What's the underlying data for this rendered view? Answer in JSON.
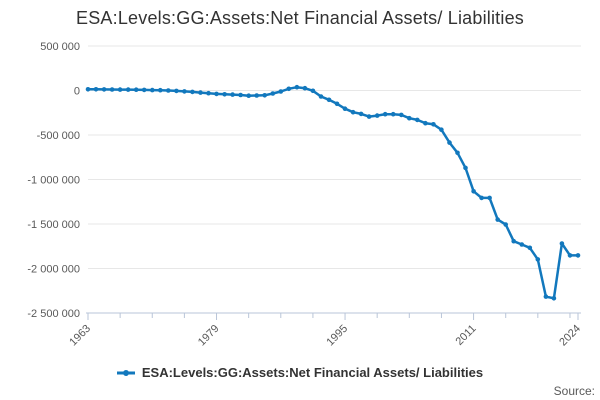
{
  "title": "ESA:Levels:GG:Assets:Net Financial Assets/ Liabilities",
  "legend": {
    "label": "ESA:Levels:GG:Assets:Net Financial Assets/ Liabilities"
  },
  "source_label": "Source:",
  "colors": {
    "line": "#1278bd",
    "grid": "#e7e7e7",
    "axis": "#b9c5d8",
    "title_text": "#333333",
    "tick_text": "#595959",
    "source_text": "#595959"
  },
  "chart_data": {
    "type": "line",
    "title": "ESA:Levels:GG:Assets:Net Financial Assets/ Liabilities",
    "xlabel": "",
    "ylabel": "",
    "grid": true,
    "legend_position": "bottom",
    "marker": "circle",
    "ylim": [
      -2500000,
      500000
    ],
    "yticks": [
      500000,
      0,
      -500000,
      -1000000,
      -1500000,
      -2000000,
      -2500000
    ],
    "ytick_labels": [
      "500 000",
      "0",
      "-500 000",
      "-1 000 000",
      "-1 500 000",
      "-2 000 000",
      "-2 500 000"
    ],
    "xtick_every": 4,
    "xtick_labeled": [
      1963,
      1979,
      1995,
      2011,
      2024
    ],
    "x": [
      1963,
      1964,
      1965,
      1966,
      1967,
      1968,
      1969,
      1970,
      1971,
      1972,
      1973,
      1974,
      1975,
      1976,
      1977,
      1978,
      1979,
      1980,
      1981,
      1982,
      1983,
      1984,
      1985,
      1986,
      1987,
      1988,
      1989,
      1990,
      1991,
      1992,
      1993,
      1994,
      1995,
      1996,
      1997,
      1998,
      1999,
      2000,
      2001,
      2002,
      2003,
      2004,
      2005,
      2006,
      2007,
      2008,
      2009,
      2010,
      2011,
      2012,
      2013,
      2014,
      2015,
      2016,
      2017,
      2018,
      2019,
      2020,
      2021,
      2022,
      2023,
      2024
    ],
    "series": [
      {
        "name": "ESA:Levels:GG:Assets:Net Financial Assets/ Liabilities",
        "values": [
          14000,
          13000,
          12000,
          11000,
          10000,
          10000,
          9000,
          7000,
          5000,
          3000,
          0,
          -4000,
          -10000,
          -16000,
          -24000,
          -30000,
          -38000,
          -43000,
          -46000,
          -51000,
          -58000,
          -56000,
          -54000,
          -34000,
          -11000,
          19000,
          37000,
          26000,
          -3000,
          -67000,
          -104000,
          -150000,
          -205000,
          -244000,
          -263000,
          -293000,
          -282000,
          -266000,
          -266000,
          -274000,
          -311000,
          -330000,
          -367000,
          -380000,
          -440000,
          -585000,
          -700000,
          -870000,
          -1133000,
          -1207000,
          -1207000,
          -1450000,
          -1506000,
          -1693000,
          -1730000,
          -1767000,
          -1898000,
          -2316000,
          -2335000,
          -1719000,
          -1853000,
          -1853000
        ]
      }
    ]
  }
}
